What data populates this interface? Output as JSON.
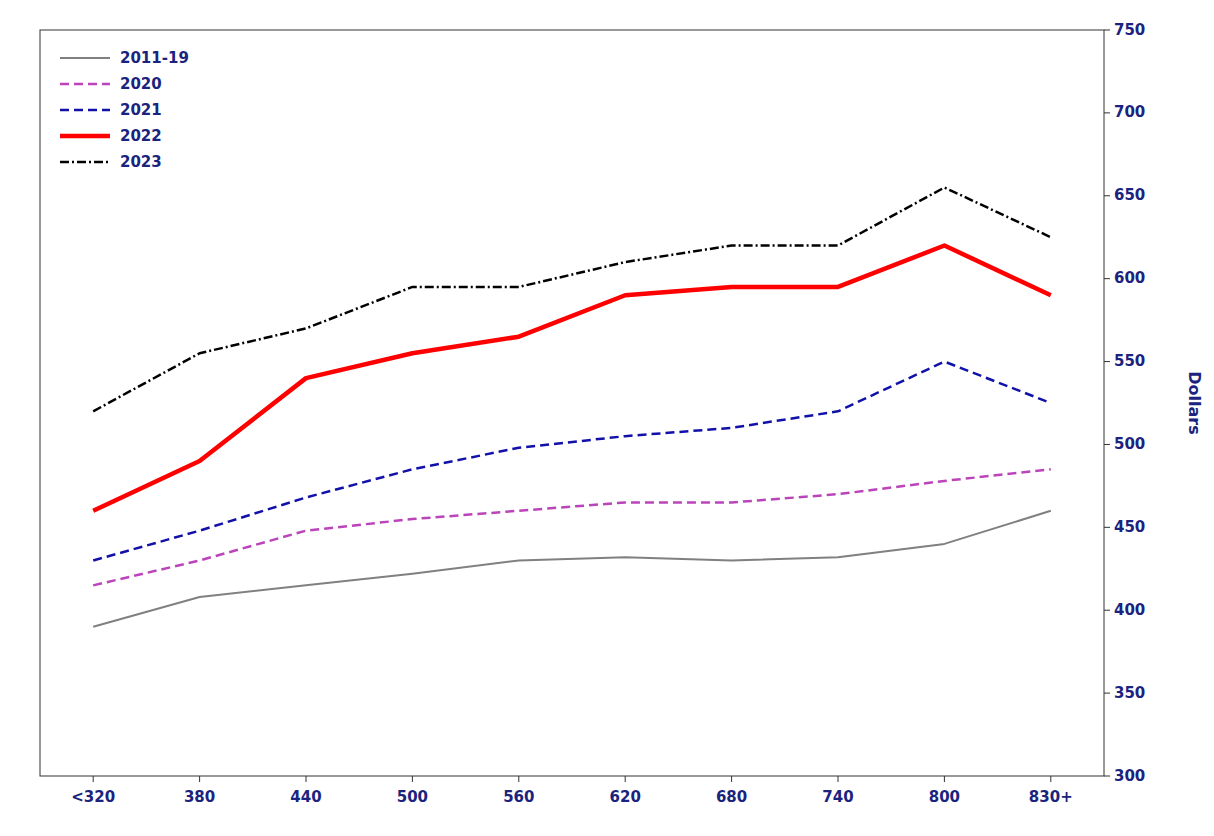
{
  "chart_data": {
    "type": "line",
    "categories": [
      "<320",
      "380",
      "440",
      "500",
      "560",
      "620",
      "680",
      "740",
      "800",
      "830+"
    ],
    "series": [
      {
        "name": "2011-19",
        "color": "#808080",
        "line_style": "solid",
        "values": [
          390,
          408,
          415,
          422,
          430,
          432,
          430,
          432,
          440,
          460
        ]
      },
      {
        "name": "2020",
        "color": "#bb44bb",
        "line_style": "dashed",
        "values": [
          415,
          430,
          448,
          455,
          460,
          465,
          465,
          470,
          478,
          485
        ]
      },
      {
        "name": "2021",
        "color": "#1111aa",
        "line_style": "dashed",
        "values": [
          430,
          448,
          468,
          485,
          498,
          505,
          510,
          520,
          550,
          525
        ]
      },
      {
        "name": "2022",
        "color": "#ff0000",
        "line_style": "solid",
        "values": [
          460,
          490,
          540,
          555,
          565,
          590,
          595,
          595,
          620,
          590
        ]
      },
      {
        "name": "2023",
        "color": "#000000",
        "line_style": "dashdot",
        "values": [
          520,
          555,
          570,
          595,
          595,
          610,
          620,
          620,
          655,
          625
        ]
      }
    ],
    "ylim": [
      300,
      750
    ],
    "yticks": [
      300,
      350,
      400,
      450,
      500,
      550,
      600,
      650,
      700,
      750
    ],
    "ylabel": "Dollars",
    "grid": false,
    "legend": "upper-left"
  }
}
